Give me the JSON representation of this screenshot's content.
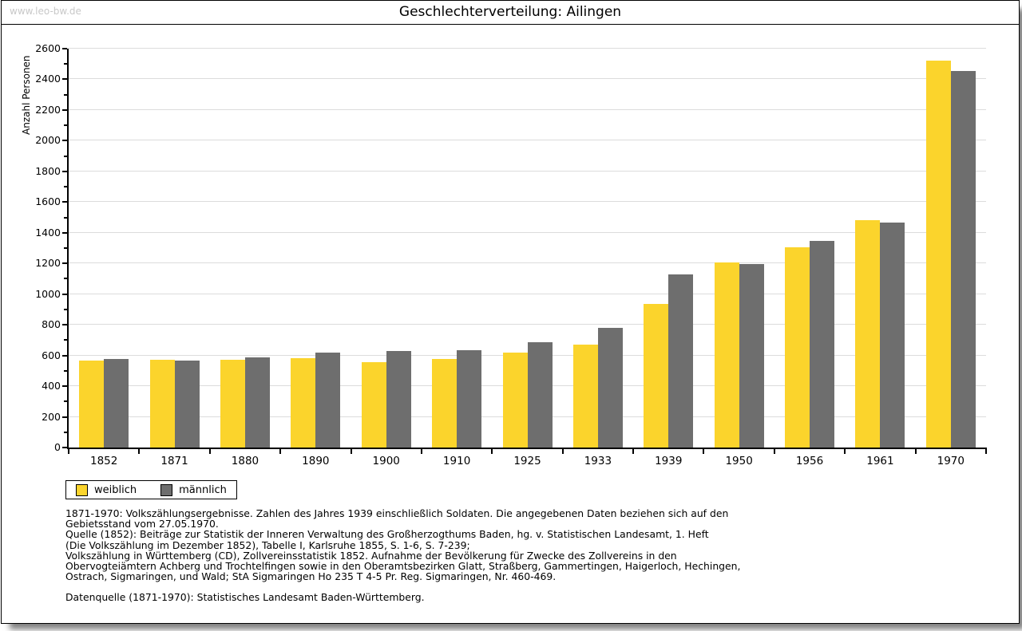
{
  "header": {
    "watermark": "www.leo-bw.de",
    "title": "Geschlechterverteilung: Ailingen"
  },
  "chart_data": {
    "type": "bar",
    "title": "Geschlechterverteilung: Ailingen",
    "xlabel": "",
    "ylabel": "Anzahl Personen",
    "categories": [
      "1852",
      "1871",
      "1880",
      "1890",
      "1900",
      "1910",
      "1925",
      "1933",
      "1939",
      "1950",
      "1956",
      "1961",
      "1970"
    ],
    "series": [
      {
        "name": "weiblich",
        "color": "#FBD42C",
        "values": [
          565,
          572,
          573,
          585,
          558,
          577,
          618,
          672,
          938,
          1208,
          1306,
          1480,
          2521
        ]
      },
      {
        "name": "männlich",
        "color": "#6E6E6E",
        "values": [
          575,
          567,
          590,
          621,
          630,
          632,
          684,
          781,
          1128,
          1198,
          1348,
          1467,
          2452
        ]
      }
    ],
    "ylim": [
      0,
      2600
    ],
    "ytick_step": 200,
    "yticks": [
      0,
      200,
      400,
      600,
      800,
      1000,
      1200,
      1400,
      1600,
      1800,
      2000,
      2200,
      2400,
      2600
    ],
    "minor_tick_step": 100,
    "grid": true,
    "gridline_color": "#dcdcdc",
    "legend_position": "bottom-left"
  },
  "footnotes": {
    "lines": [
      "1871-1970: Volkszählungsergebnisse. Zahlen des Jahres 1939 einschließlich Soldaten. Die angegebenen Daten beziehen sich auf den",
      "Gebietsstand vom 27.05.1970.",
      "Quelle (1852): Beiträge zur Statistik der Inneren Verwaltung des Großherzogthums Baden, hg. v. Statistischen Landesamt, 1. Heft",
      "(Die Volkszählung im Dezember 1852), Tabelle I, Karlsruhe 1855, S. 1-6, S. 7-239;",
      "Volkszählung in Württemberg (CD), Zollvereinsstatistik 1852. Aufnahme der Bevölkerung für Zwecke des Zollvereins in den",
      "Obervogteiämtern Achberg und Trochtelfingen sowie in den Oberamtsbezirken Glatt, Straßberg, Gammertingen, Haigerloch, Hechingen,",
      "Ostrach, Sigmaringen, und Wald; StA Sigmaringen Ho 235 T 4-5 Pr. Reg. Sigmaringen, Nr. 460-469."
    ],
    "source": "Datenquelle (1871-1970): Statistisches Landesamt Baden-Württemberg."
  }
}
